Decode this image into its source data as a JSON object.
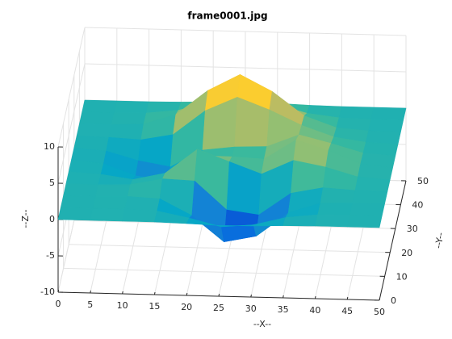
{
  "chart_data": {
    "type": "surface",
    "title": "frame0001.jpg",
    "xlabel": "--X--",
    "ylabel": "--Y--",
    "zlabel": "--Z--",
    "colormap": "parula",
    "grid": true,
    "x": [
      0,
      5,
      10,
      15,
      20,
      25,
      30,
      35,
      40,
      45,
      50
    ],
    "y": [
      0,
      5,
      10,
      15,
      20,
      25,
      30,
      35,
      40,
      45,
      50
    ],
    "z": [
      [
        0,
        0,
        0,
        0,
        -0.11,
        -0.25,
        -0.21,
        -0.07,
        0,
        0,
        0
      ],
      [
        0,
        0,
        0.03,
        -0.13,
        -1.0,
        -2.09,
        -1.7,
        -0.59,
        -0.09,
        0,
        0
      ],
      [
        0,
        0,
        0.11,
        -0.1,
        -2.31,
        -5.8,
        -4.9,
        -1.6,
        -0.16,
        0,
        0
      ],
      [
        0,
        -0.03,
        0.1,
        1.0,
        0.82,
        -3.05,
        -3.63,
        -0.53,
        0.35,
        0.08,
        0
      ],
      [
        0,
        -0.24,
        -0.84,
        0.13,
        3.53,
        1.93,
        0.36,
        2.35,
        1.52,
        0.3,
        0
      ],
      [
        0,
        -0.43,
        -1.97,
        -2.59,
        1.02,
        0.98,
        0.77,
        3.54,
        2.16,
        0.42,
        0
      ],
      [
        0,
        -0.32,
        -1.53,
        -2.29,
        0.13,
        0.69,
        0.85,
        2.58,
        1.5,
        0.29,
        0
      ],
      [
        0,
        -0.09,
        -0.31,
        0.51,
        3.92,
        5.89,
        4.26,
        2.23,
        0.74,
        0.12,
        0
      ],
      [
        0,
        0,
        0.2,
        1.61,
        5.06,
        7.36,
        5.13,
        1.9,
        0.37,
        0.05,
        0
      ],
      [
        0,
        0,
        0.09,
        0.59,
        1.75,
        2.51,
        1.75,
        0.61,
        0.1,
        0,
        0
      ],
      [
        0,
        0,
        0,
        0.07,
        0.21,
        0.3,
        0.21,
        0.07,
        0,
        0,
        0
      ]
    ],
    "xlim": [
      0,
      50
    ],
    "ylim": [
      0,
      50
    ],
    "zlim": [
      -10,
      10
    ],
    "xticks": [
      0,
      5,
      10,
      15,
      20,
      25,
      30,
      35,
      40,
      45,
      50
    ],
    "yticks": [
      0,
      10,
      20,
      30,
      40,
      50
    ],
    "zticks": [
      -10,
      -5,
      0,
      5,
      10
    ]
  }
}
